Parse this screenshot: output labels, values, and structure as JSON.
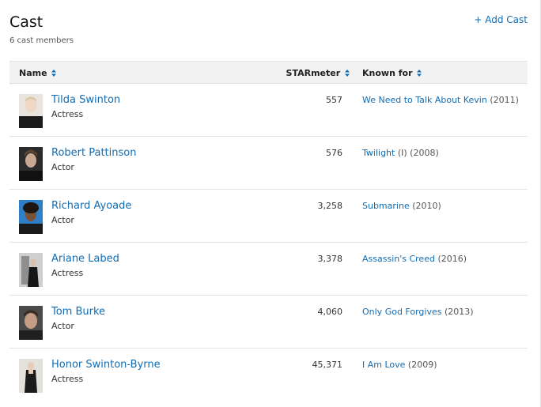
{
  "header": {
    "title": "Cast",
    "count": "6 cast members",
    "add_label": "+ Add Cast"
  },
  "columns": {
    "name": "Name",
    "starmeter": "STARmeter",
    "known_for": "Known for"
  },
  "colors": {
    "link": "#136cb2",
    "sort_icon": "#136cb2",
    "header_bg": "#f2f2f2"
  },
  "cast": [
    {
      "name": "Tilda Swinton",
      "role": "Actress",
      "starmeter": "557",
      "known_title": "We Need to Talk About Kevin",
      "known_year": " (2011)"
    },
    {
      "name": "Robert Pattinson",
      "role": "Actor",
      "starmeter": "576",
      "known_title": "Twilight",
      "known_year": " (I) (2008)"
    },
    {
      "name": "Richard Ayoade",
      "role": "Actor",
      "starmeter": "3,258",
      "known_title": "Submarine",
      "known_year": " (2010)"
    },
    {
      "name": "Ariane Labed",
      "role": "Actress",
      "starmeter": "3,378",
      "known_title": "Assassin's Creed",
      "known_year": " (2016)"
    },
    {
      "name": "Tom Burke",
      "role": "Actor",
      "starmeter": "4,060",
      "known_title": "Only God Forgives",
      "known_year": " (2013)"
    },
    {
      "name": "Honor Swinton-Byrne",
      "role": "Actress",
      "starmeter": "45,371",
      "known_title": "I Am Love",
      "known_year": " (2009)"
    }
  ]
}
